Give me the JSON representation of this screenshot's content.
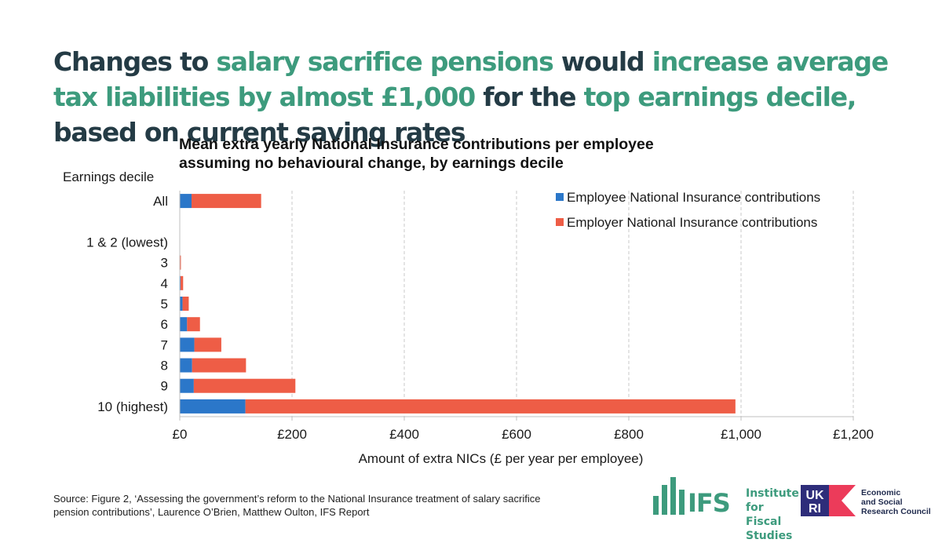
{
  "headline": {
    "p1": "Changes to ",
    "p2": "salary sacrifice pensions",
    "p3": " would ",
    "p4": "increase average tax liabilities by almost £1,000",
    "p5": " for the ",
    "p6": "top earnings decile,",
    "p7": " based on current saving rates"
  },
  "chart_data": {
    "type": "bar",
    "orientation": "horizontal",
    "stacked": true,
    "title_lines": [
      "Mean extra yearly National Insurance contributions per employee",
      "assuming no behavioural change, by earnings decile"
    ],
    "ylabel": "Earnings decile",
    "xlabel": "Amount of extra NICs (£ per year per employee)",
    "categories": [
      "All",
      "",
      "1 & 2 (lowest)",
      "3",
      "4",
      "5",
      "6",
      "7",
      "8",
      "9",
      "10 (highest)"
    ],
    "series": [
      {
        "name": "Employee National Insurance contributions",
        "color": "#2b77c9",
        "values": [
          21,
          null,
          0,
          0.5,
          1.5,
          5,
          13,
          26,
          22,
          25,
          117
        ]
      },
      {
        "name": "Employer National Insurance contributions",
        "color": "#ee5d46",
        "values": [
          124,
          null,
          0,
          1.5,
          4.5,
          11,
          23,
          48,
          96,
          181,
          873
        ]
      }
    ],
    "xlim": [
      0,
      1200
    ],
    "xticks": [
      0,
      200,
      400,
      600,
      800,
      1000,
      1200
    ],
    "xtick_labels": [
      "£0",
      "£200",
      "£400",
      "£600",
      "£800",
      "£1,000",
      "£1,200"
    ],
    "grid": "vertical dashed",
    "legend_position": "top-right"
  },
  "source": "Source: Figure 2, ‘Assessing the government’s reform to the National Insurance treatment of salary sacrifice pension contributions’, Laurence O’Brien, Matthew Oulton, IFS Report",
  "logos": {
    "ifs_name": "IFS",
    "ifs_sub_1": "Institute for",
    "ifs_sub_2": "Fiscal Studies",
    "ukri_1": "UK",
    "ukri_2": "RI",
    "esrc_1": "Economic",
    "esrc_2": "and Social",
    "esrc_3": "Research Council"
  }
}
